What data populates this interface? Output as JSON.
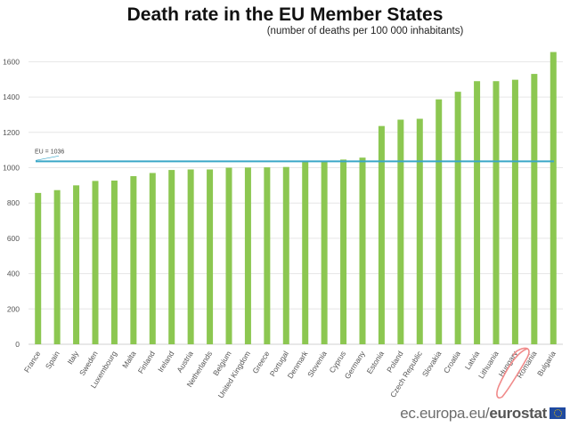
{
  "chart_data": {
    "type": "bar",
    "title": "Death rate in the EU Member States",
    "subtitle": "(number of deaths per 100 000 inhabitants)",
    "xlabel": "",
    "ylabel": "",
    "ylim": [
      0,
      1700
    ],
    "yticks": [
      0,
      200,
      400,
      600,
      800,
      1000,
      1200,
      1400,
      1600
    ],
    "grid": true,
    "legend": "none",
    "bar_color": "#8cc751",
    "categories": [
      "France",
      "Spain",
      "Italy",
      "Sweden",
      "Luxembourg",
      "Malta",
      "Finland",
      "Ireland",
      "Austria",
      "Netherlands",
      "Belgium",
      "United Kingdom",
      "Greece",
      "Portugal",
      "Denmark",
      "Slovenia",
      "Cyprus",
      "Germany",
      "Estonia",
      "Poland",
      "Czech Republic",
      "Slovakia",
      "Croatia",
      "Latvia",
      "Lithuania",
      "Hungary",
      "Romania",
      "Bulgaria"
    ],
    "values": [
      857,
      873,
      900,
      925,
      927,
      952,
      970,
      987,
      990,
      990,
      1000,
      1001,
      1002,
      1004,
      1035,
      1037,
      1046,
      1057,
      1236,
      1272,
      1277,
      1387,
      1430,
      1490,
      1490,
      1498,
      1531,
      1655
    ],
    "reference_line": {
      "label": "EU = 1036",
      "value": 1036,
      "color": "#3aa7c8"
    },
    "annotations": [
      {
        "type": "hand-drawn circle",
        "target": "Hungary",
        "color": "#f08a8a"
      }
    ]
  },
  "footer": {
    "source_prefix": "ec.europa.eu/",
    "source_brand": "eurostat"
  }
}
